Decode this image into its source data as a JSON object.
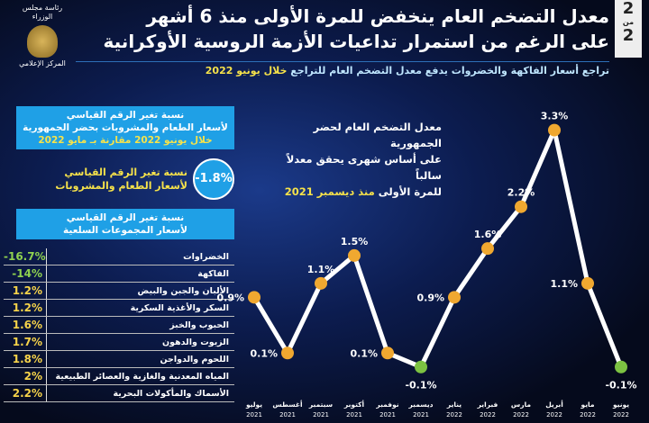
{
  "header": {
    "title_line1": "معدل التضخم العام ينخفض للمرة الأولى منذ 6 أشهر",
    "title_line2": "على الرغم من استمرار تداعيات الأزمة الروسية الأوكرانية",
    "page_current": "2",
    "page_of": "من",
    "page_total": "2",
    "logo_text_top": "رئاسة مجلس الوزراء",
    "logo_text_bottom": "المركز الإعلامي",
    "subtitle_main": "تراجع أسعار الفاكهة والخضروات يدفع معدل التضخم العام للتراجع ",
    "subtitle_highlight": "خلال يونيو 2022"
  },
  "left_panel": {
    "box1_line1": "نسبة تغير الرقم القياسي",
    "box1_line2": "لأسعار الطعام والمشروبات بحضر الجمهورية",
    "box1_line3": "خلال يونيو 2022 مقارنة بـ مايو 2022",
    "food_change": "-1.8%",
    "food_label_line1": "نسبة تغير الرقم القياسي",
    "food_label_line2": "لأسعار الطعام والمشروبات",
    "box2_line1": "نسبة تغير الرقم القياسي",
    "box2_line2": "لأسعار المجموعات السلعية",
    "groups": [
      {
        "label": "الخضراوات",
        "value": "-16.7%",
        "color": "#8fd14f"
      },
      {
        "label": "الفاكهة",
        "value": "-14%",
        "color": "#8fd14f"
      },
      {
        "label": "الألبان والجبن والبيض",
        "value": "1.2%",
        "color": "#f6d34a"
      },
      {
        "label": "السكر والأغذية السكرية",
        "value": "1.2%",
        "color": "#f6d34a"
      },
      {
        "label": "الحبوب والخبز",
        "value": "1.6%",
        "color": "#f6d34a"
      },
      {
        "label": "الزيوت والدهون",
        "value": "1.7%",
        "color": "#f6d34a"
      },
      {
        "label": "اللحوم والدواجن",
        "value": "1.8%",
        "color": "#f6d34a"
      },
      {
        "label": "المياه المعدنية والغازية والعصائر الطبيعية",
        "value": "2%",
        "color": "#f6d34a"
      },
      {
        "label": "الأسماك والمأكولات البحرية",
        "value": "2.2%",
        "color": "#f6d34a"
      }
    ]
  },
  "chart_text": {
    "line1": "معدل التضخم العام لحضر الجمهورية",
    "line2": "على أساس شهرى يحقق معدلاً سالباً",
    "line3": "للمرة الأولى ",
    "line3_highlight": "منذ ديسمبر 2021"
  },
  "chart_data": {
    "type": "line",
    "categories": [
      [
        "يوليو",
        "2021"
      ],
      [
        "أغسطس",
        "2021"
      ],
      [
        "سبتمبر",
        "2021"
      ],
      [
        "أكتوبر",
        "2021"
      ],
      [
        "نوفمبر",
        "2021"
      ],
      [
        "ديسمبر",
        "2021"
      ],
      [
        "يناير",
        "2022"
      ],
      [
        "فبراير",
        "2022"
      ],
      [
        "مارس",
        "2022"
      ],
      [
        "أبريل",
        "2022"
      ],
      [
        "مايو",
        "2022"
      ],
      [
        "يونيو",
        "2022"
      ]
    ],
    "values": [
      0.9,
      0.1,
      1.1,
      1.5,
      0.1,
      -0.1,
      0.9,
      1.6,
      2.2,
      3.3,
      1.1,
      -0.1
    ],
    "labels": [
      "0.9%",
      "0.1%",
      "1.1%",
      "1.5%",
      "0.1%",
      "-0.1%",
      "0.9%",
      "1.6%",
      "2.2%",
      "3.3%",
      "1.1%",
      "-0.1%"
    ],
    "ylim": [
      -0.1,
      3.3
    ],
    "line_color": "#ffffff",
    "positive_marker_color": "#f0a830",
    "negative_marker_color": "#7cc242",
    "grid": false
  }
}
